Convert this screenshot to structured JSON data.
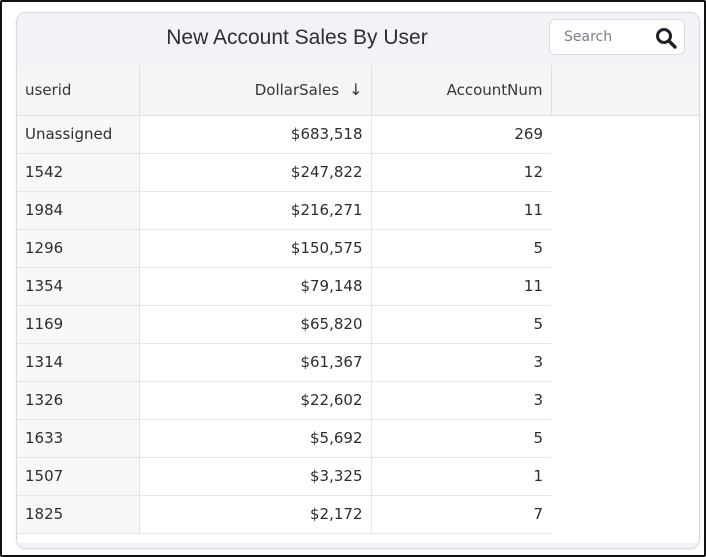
{
  "widget": {
    "title": "New Account Sales By User",
    "search": {
      "placeholder": "Search",
      "value": "",
      "icon": "search-icon"
    }
  },
  "table": {
    "columns": [
      {
        "key": "userid",
        "label": "userid"
      },
      {
        "key": "dollar_sales",
        "label": "DollarSales",
        "sort": "descending",
        "sort_icon": "↓"
      },
      {
        "key": "account_num",
        "label": "AccountNum"
      }
    ],
    "rows": [
      {
        "userid": "Unassigned",
        "dollar_sales": "$683,518",
        "account_num": "269"
      },
      {
        "userid": "1542",
        "dollar_sales": "$247,822",
        "account_num": "12"
      },
      {
        "userid": "1984",
        "dollar_sales": "$216,271",
        "account_num": "11"
      },
      {
        "userid": "1296",
        "dollar_sales": "$150,575",
        "account_num": "5"
      },
      {
        "userid": "1354",
        "dollar_sales": "$79,148",
        "account_num": "11"
      },
      {
        "userid": "1169",
        "dollar_sales": "$65,820",
        "account_num": "5"
      },
      {
        "userid": "1314",
        "dollar_sales": "$61,367",
        "account_num": "3"
      },
      {
        "userid": "1326",
        "dollar_sales": "$22,602",
        "account_num": "3"
      },
      {
        "userid": "1633",
        "dollar_sales": "$5,692",
        "account_num": "5"
      },
      {
        "userid": "1507",
        "dollar_sales": "$3,325",
        "account_num": "1"
      },
      {
        "userid": "1825",
        "dollar_sales": "$2,172",
        "account_num": "7"
      }
    ]
  },
  "colors": {
    "header_bg": "#f1f3f6",
    "text": "#2a2d31",
    "border": "#dde0e4",
    "frame": "#111111"
  }
}
